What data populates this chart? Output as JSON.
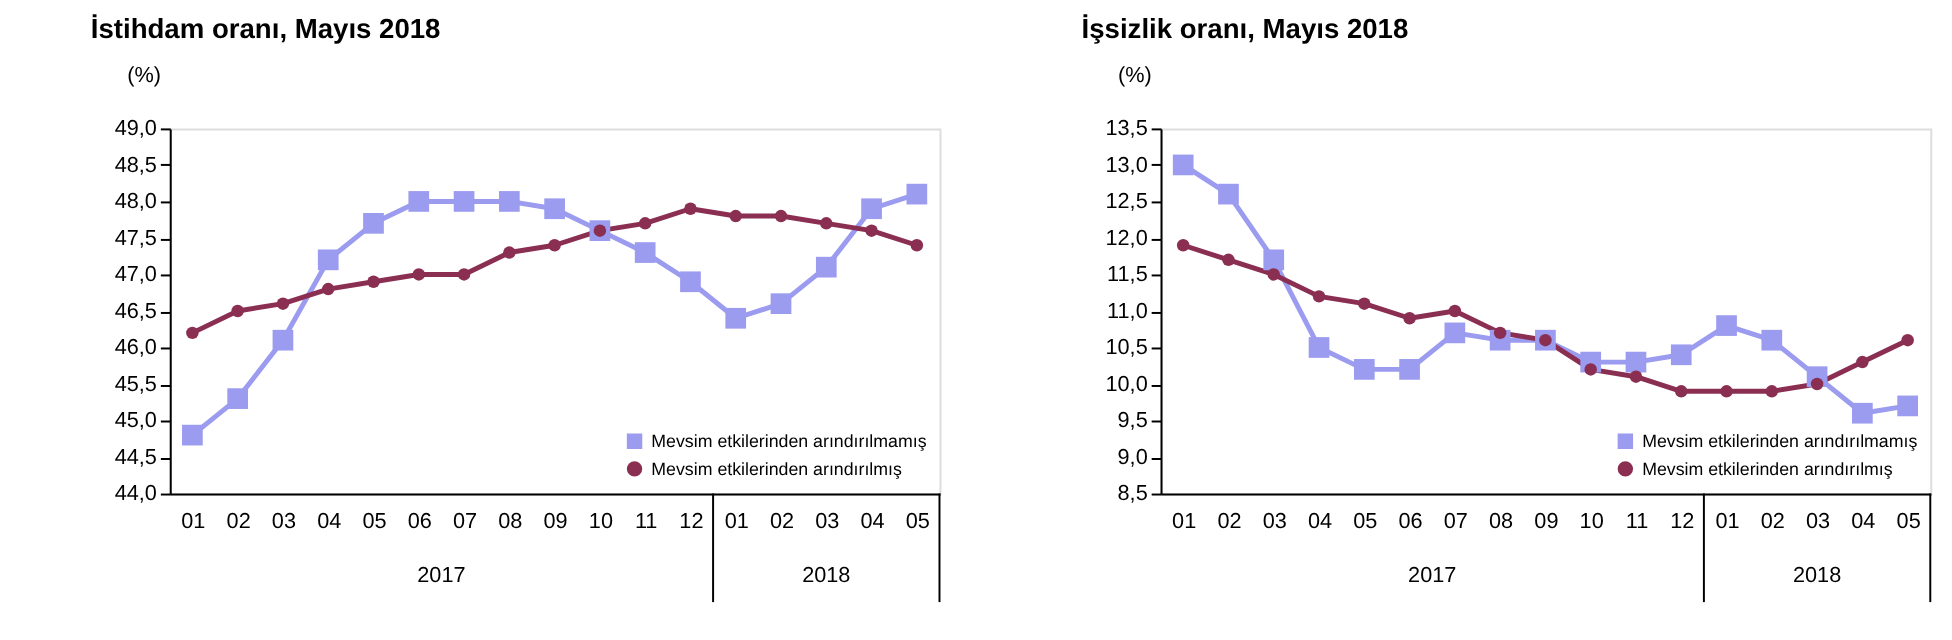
{
  "chart_data": [
    {
      "type": "line",
      "title": "İstihdam oranı, Mayıs 2018",
      "ylabel": "(%)",
      "categories": [
        "01",
        "02",
        "03",
        "04",
        "05",
        "06",
        "07",
        "08",
        "09",
        "10",
        "11",
        "12",
        "01",
        "02",
        "03",
        "04",
        "05"
      ],
      "annotations": [
        "2017",
        "2018"
      ],
      "legend": "bottom right",
      "grid": false,
      "line_style": "solid",
      "ylim": [
        44.0,
        49.0
      ],
      "yticks": [
        {
          "value": 44.0,
          "label": "44,0"
        },
        {
          "value": 44.5,
          "label": "44,5"
        },
        {
          "value": 45.0,
          "label": "45,0"
        },
        {
          "value": 45.5,
          "label": "45,5"
        },
        {
          "value": 46.0,
          "label": "46,0"
        },
        {
          "value": 46.5,
          "label": "46,5"
        },
        {
          "value": 47.0,
          "label": "47,0"
        },
        {
          "value": 47.5,
          "label": "47,5"
        },
        {
          "value": 48.0,
          "label": "48,0"
        },
        {
          "value": 48.5,
          "label": "48,5"
        },
        {
          "value": 49.0,
          "label": "49,0"
        }
      ],
      "series": [
        {
          "name": "Mevsim etkilerinden arındırılmamış",
          "color": "#9b9bf0",
          "marker": "square",
          "values": [
            44.8,
            45.3,
            46.1,
            47.2,
            47.7,
            48.0,
            48.0,
            48.0,
            47.9,
            47.6,
            47.3,
            46.9,
            46.4,
            46.6,
            47.1,
            47.9,
            48.1
          ]
        },
        {
          "name": "Mevsim etkilerinden arındırılmış",
          "color": "#8b2f52",
          "marker": "circle",
          "values": [
            46.2,
            46.5,
            46.6,
            46.8,
            46.9,
            47.0,
            47.0,
            47.3,
            47.4,
            47.6,
            47.7,
            47.9,
            47.8,
            47.8,
            47.7,
            47.6,
            47.4
          ]
        }
      ]
    },
    {
      "type": "line",
      "title": "İşsizlik oranı, Mayıs 2018",
      "ylabel": "(%)",
      "categories": [
        "01",
        "02",
        "03",
        "04",
        "05",
        "06",
        "07",
        "08",
        "09",
        "10",
        "11",
        "12",
        "01",
        "02",
        "03",
        "04",
        "05"
      ],
      "annotations": [
        "2017",
        "2018"
      ],
      "legend": "bottom right",
      "grid": false,
      "line_style": "solid",
      "ylim": [
        8.5,
        13.5
      ],
      "yticks": [
        {
          "value": 8.5,
          "label": "8,5"
        },
        {
          "value": 9.0,
          "label": "9,0"
        },
        {
          "value": 9.5,
          "label": "9,5"
        },
        {
          "value": 10.0,
          "label": "10,0"
        },
        {
          "value": 10.5,
          "label": "10,5"
        },
        {
          "value": 11.0,
          "label": "11,0"
        },
        {
          "value": 11.5,
          "label": "11,5"
        },
        {
          "value": 12.0,
          "label": "12,0"
        },
        {
          "value": 12.5,
          "label": "12,5"
        },
        {
          "value": 13.0,
          "label": "13,0"
        },
        {
          "value": 13.5,
          "label": "13,5"
        }
      ],
      "series": [
        {
          "name": "Mevsim etkilerinden arındırılmamış",
          "color": "#9b9bf0",
          "marker": "square",
          "values": [
            13.0,
            12.6,
            11.7,
            10.5,
            10.2,
            10.2,
            10.7,
            10.6,
            10.6,
            10.3,
            10.3,
            10.4,
            10.8,
            10.6,
            10.1,
            9.6,
            9.7
          ]
        },
        {
          "name": "Mevsim etkilerinden arındırılmış",
          "color": "#8b2f52",
          "marker": "circle",
          "values": [
            11.9,
            11.7,
            11.5,
            11.2,
            11.1,
            10.9,
            11.0,
            10.7,
            10.6,
            10.2,
            10.1,
            9.9,
            9.9,
            9.9,
            10.0,
            10.3,
            10.6
          ]
        }
      ]
    }
  ]
}
